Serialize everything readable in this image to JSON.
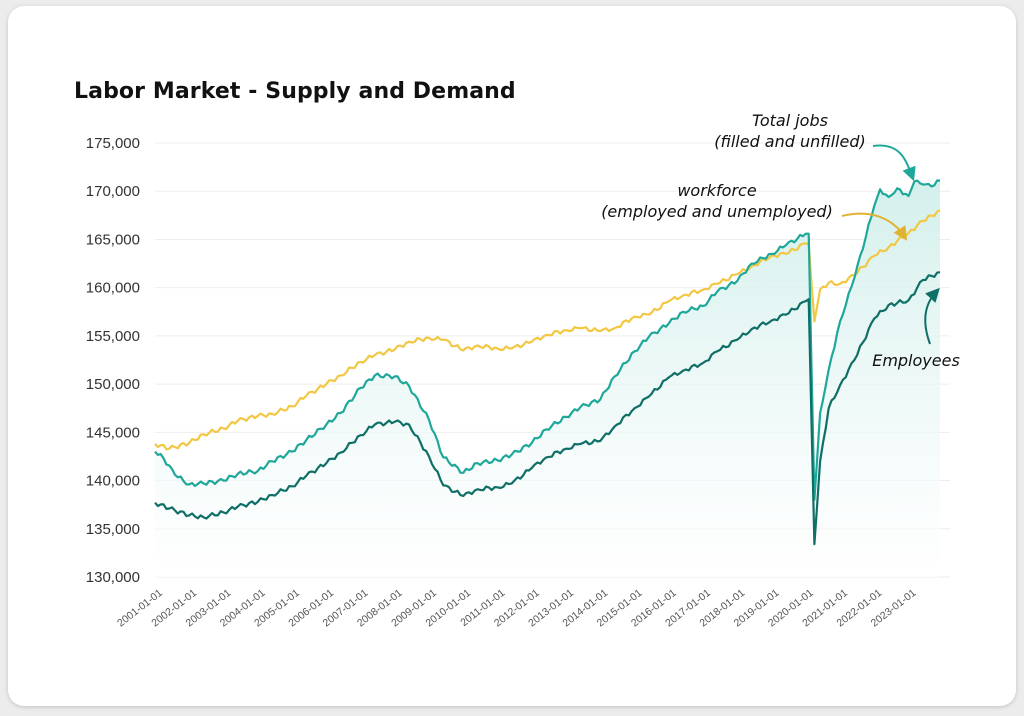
{
  "chart_data": {
    "type": "line",
    "title": "Labor Market - Supply and Demand",
    "xlabel": "",
    "ylabel": "",
    "ylim": [
      130000,
      175000
    ],
    "y_ticks": [
      "175,000",
      "170,000",
      "165,000",
      "160,000",
      "155,000",
      "150,000",
      "145,000",
      "140,000",
      "135,000",
      "130,000"
    ],
    "x_ticks": [
      "2001-01-01",
      "2002-01-01",
      "2003-01-01",
      "2004-01-01",
      "2005-01-01",
      "2006-01-01",
      "2007-01-01",
      "2008-01-01",
      "2009-01-01",
      "2010-01-01",
      "2011-01-01",
      "2012-01-01",
      "2013-01-01",
      "2014-01-01",
      "2015-01-01",
      "2016-01-01",
      "2017-01-01",
      "2018-01-01",
      "2019-01-01",
      "2020-01-01",
      "2021-01-01",
      "2022-01-01",
      "2023-01-01"
    ],
    "grid": true,
    "legend": "none",
    "series": [
      {
        "key": "workforce",
        "color": "#f2c744",
        "points": [
          [
            "2001-01",
            143800
          ],
          [
            "2001-06",
            143300
          ],
          [
            "2002-01",
            143900
          ],
          [
            "2002-06",
            144800
          ],
          [
            "2003-01",
            145400
          ],
          [
            "2003-06",
            146200
          ],
          [
            "2004-01",
            146700
          ],
          [
            "2004-06",
            146900
          ],
          [
            "2005-01",
            147700
          ],
          [
            "2005-06",
            148800
          ],
          [
            "2006-01",
            150000
          ],
          [
            "2006-06",
            150900
          ],
          [
            "2007-01",
            152300
          ],
          [
            "2007-06",
            153000
          ],
          [
            "2008-01",
            153600
          ],
          [
            "2008-06",
            154400
          ],
          [
            "2009-01",
            154800
          ],
          [
            "2009-06",
            154600
          ],
          [
            "2010-01",
            153500
          ],
          [
            "2010-06",
            154000
          ],
          [
            "2011-01",
            153700
          ],
          [
            "2011-06",
            153700
          ],
          [
            "2012-01",
            154400
          ],
          [
            "2012-06",
            155100
          ],
          [
            "2013-01",
            155600
          ],
          [
            "2013-06",
            155800
          ],
          [
            "2014-01",
            155500
          ],
          [
            "2014-06",
            155800
          ],
          [
            "2015-01",
            157000
          ],
          [
            "2015-06",
            157200
          ],
          [
            "2016-01",
            158600
          ],
          [
            "2016-06",
            159200
          ],
          [
            "2017-01",
            159800
          ],
          [
            "2017-06",
            160400
          ],
          [
            "2018-01",
            161400
          ],
          [
            "2018-06",
            162200
          ],
          [
            "2019-01",
            163300
          ],
          [
            "2019-06",
            163500
          ],
          [
            "2020-01",
            164600
          ],
          [
            "2020-02",
            164500
          ],
          [
            "2020-04",
            156500
          ],
          [
            "2020-06",
            159800
          ],
          [
            "2020-09",
            160500
          ],
          [
            "2021-01",
            160400
          ],
          [
            "2021-06",
            161300
          ],
          [
            "2022-01",
            163300
          ],
          [
            "2022-06",
            164200
          ],
          [
            "2023-01",
            165700
          ],
          [
            "2023-06",
            166900
          ],
          [
            "2023-12",
            168000
          ]
        ]
      },
      {
        "key": "total_jobs",
        "color": "#1fa89a",
        "points": [
          [
            "2001-01",
            143000
          ],
          [
            "2001-04",
            142300
          ],
          [
            "2001-08",
            140600
          ],
          [
            "2002-01",
            139600
          ],
          [
            "2002-06",
            139700
          ],
          [
            "2003-01",
            140000
          ],
          [
            "2003-06",
            140700
          ],
          [
            "2004-01",
            141000
          ],
          [
            "2004-06",
            142000
          ],
          [
            "2005-01",
            143000
          ],
          [
            "2005-06",
            144200
          ],
          [
            "2006-01",
            145800
          ],
          [
            "2006-06",
            147000
          ],
          [
            "2007-01",
            149600
          ],
          [
            "2007-06",
            150900
          ],
          [
            "2008-01",
            150800
          ],
          [
            "2008-06",
            149800
          ],
          [
            "2009-01",
            146300
          ],
          [
            "2009-06",
            142400
          ],
          [
            "2010-01",
            140800
          ],
          [
            "2010-06",
            141800
          ],
          [
            "2011-01",
            142100
          ],
          [
            "2011-06",
            142700
          ],
          [
            "2012-01",
            143900
          ],
          [
            "2012-06",
            145300
          ],
          [
            "2013-01",
            146600
          ],
          [
            "2013-06",
            147600
          ],
          [
            "2014-01",
            148400
          ],
          [
            "2014-06",
            150800
          ],
          [
            "2015-01",
            153400
          ],
          [
            "2015-06",
            154900
          ],
          [
            "2016-01",
            156300
          ],
          [
            "2016-06",
            157500
          ],
          [
            "2017-01",
            158100
          ],
          [
            "2017-06",
            159600
          ],
          [
            "2018-01",
            160700
          ],
          [
            "2018-06",
            162500
          ],
          [
            "2019-01",
            163500
          ],
          [
            "2019-06",
            164400
          ],
          [
            "2020-01",
            165600
          ],
          [
            "2020-02",
            165600
          ],
          [
            "2020-04",
            138000
          ],
          [
            "2020-06",
            147000
          ],
          [
            "2020-09",
            151500
          ],
          [
            "2021-01",
            156500
          ],
          [
            "2021-06",
            161000
          ],
          [
            "2022-01",
            168500
          ],
          [
            "2022-03",
            170200
          ],
          [
            "2022-06",
            169400
          ],
          [
            "2022-09",
            170300
          ],
          [
            "2023-01",
            169500
          ],
          [
            "2023-03",
            171000
          ],
          [
            "2023-06",
            170700
          ],
          [
            "2023-09",
            170500
          ],
          [
            "2023-12",
            171100
          ]
        ]
      },
      {
        "key": "employees",
        "color": "#0f6f66",
        "points": [
          [
            "2001-01",
            137700
          ],
          [
            "2001-06",
            137100
          ],
          [
            "2002-01",
            136400
          ],
          [
            "2002-06",
            136200
          ],
          [
            "2003-01",
            136700
          ],
          [
            "2003-06",
            137300
          ],
          [
            "2004-01",
            137800
          ],
          [
            "2004-06",
            138500
          ],
          [
            "2005-01",
            139400
          ],
          [
            "2005-06",
            140500
          ],
          [
            "2006-01",
            141800
          ],
          [
            "2006-06",
            142900
          ],
          [
            "2007-01",
            144700
          ],
          [
            "2007-06",
            145800
          ],
          [
            "2008-01",
            146100
          ],
          [
            "2008-06",
            145800
          ],
          [
            "2009-01",
            142500
          ],
          [
            "2009-06",
            139500
          ],
          [
            "2010-01",
            138400
          ],
          [
            "2010-06",
            139100
          ],
          [
            "2011-01",
            139300
          ],
          [
            "2011-06",
            139700
          ],
          [
            "2012-01",
            141300
          ],
          [
            "2012-06",
            142400
          ],
          [
            "2013-01",
            143300
          ],
          [
            "2013-06",
            143800
          ],
          [
            "2014-01",
            144100
          ],
          [
            "2014-06",
            145600
          ],
          [
            "2015-01",
            147500
          ],
          [
            "2015-06",
            148700
          ],
          [
            "2016-01",
            150700
          ],
          [
            "2016-06",
            151400
          ],
          [
            "2017-01",
            152200
          ],
          [
            "2017-06",
            153400
          ],
          [
            "2018-01",
            154600
          ],
          [
            "2018-06",
            155700
          ],
          [
            "2019-01",
            156600
          ],
          [
            "2019-06",
            157200
          ],
          [
            "2020-01",
            158600
          ],
          [
            "2020-02",
            158800
          ],
          [
            "2020-04",
            133400
          ],
          [
            "2020-06",
            142000
          ],
          [
            "2020-09",
            147500
          ],
          [
            "2021-01",
            149900
          ],
          [
            "2021-06",
            152500
          ],
          [
            "2022-01",
            156800
          ],
          [
            "2022-06",
            158200
          ],
          [
            "2023-01",
            158700
          ],
          [
            "2023-06",
            160800
          ],
          [
            "2023-12",
            161600
          ]
        ]
      }
    ],
    "annotations": [
      {
        "key": "total_jobs",
        "lines": [
          "Total jobs",
          "(filled and unfilled)"
        ]
      },
      {
        "key": "workforce",
        "lines": [
          "workforce",
          "(employed and unemployed)"
        ]
      },
      {
        "key": "employees",
        "lines": [
          "Employees"
        ]
      }
    ]
  },
  "colors": {
    "area_fill": "#d6f1ee"
  }
}
